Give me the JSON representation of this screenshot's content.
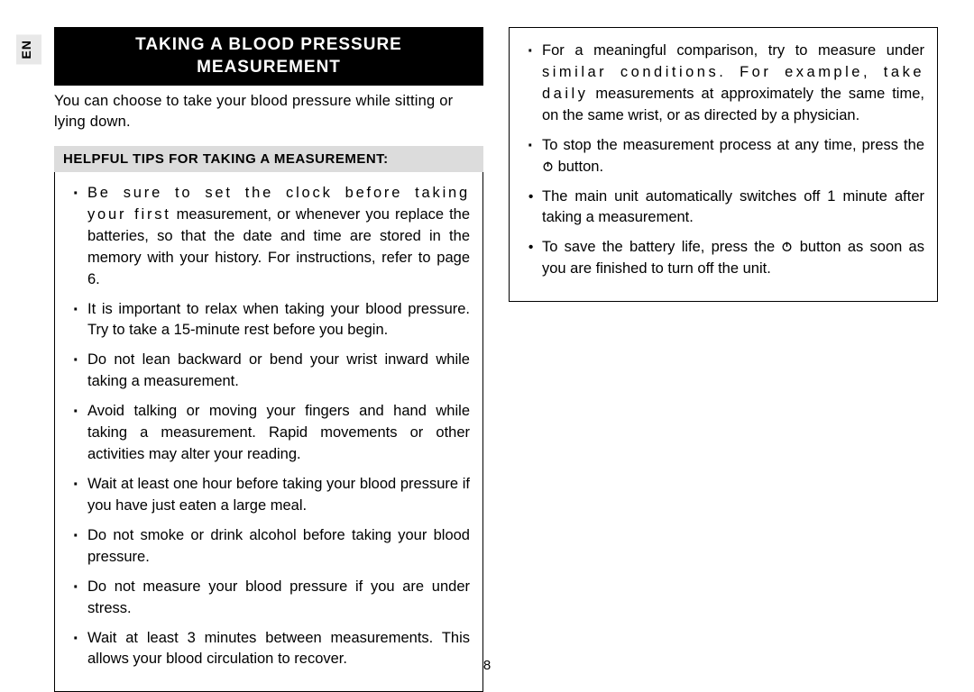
{
  "lang_tab": "EN",
  "section_title_line1": "TAKING A BLOOD PRESSURE",
  "section_title_line2": "MEASUREMENT",
  "intro": "You can choose to take your blood pressure while sitting or lying down.",
  "tips_heading": "HELPFUL TIPS FOR TAKING A MEASUREMENT:",
  "left_tips": [
    {
      "first": "Be sure to set the clock before taking your first",
      "rest": "measurement, or whenever you replace the batteries, so that the date and time are stored in the memory with your history. For instructions, refer to page 6.",
      "spaced": true
    },
    {
      "first": "",
      "rest": "It is important to relax when taking your blood pressure. Try to take a 15-minute rest before you begin."
    },
    {
      "first": "",
      "rest": "Do not lean backward or bend your wrist inward while taking a measurement."
    },
    {
      "first": "",
      "rest": "Avoid talking or moving your fingers and hand while taking a measurement. Rapid movements or other activities may alter your reading."
    },
    {
      "first": "",
      "rest": "Wait at least one hour before taking your blood pressure if you have just eaten a large meal."
    },
    {
      "first": "",
      "rest": "Do not smoke or drink alcohol before taking your blood pressure."
    },
    {
      "first": "",
      "rest": "Do not measure your blood pressure if you are under stress."
    },
    {
      "first": "",
      "rest": "Wait at least 3 minutes between measurements. This allows your blood circulation to recover."
    }
  ],
  "right_tips": [
    {
      "type": "dot",
      "first": "For a meaningful comparison, try to measure under",
      "second": "similar conditions. For example, take daily",
      "rest": "measurements at approximately the same time, on the same wrist, or as directed by a physician."
    },
    {
      "type": "dot",
      "text_before": "To stop the measurement process at any time, press the ",
      "text_after": " button.",
      "has_icon": true
    },
    {
      "type": "big",
      "rest": "The main unit automatically switches off 1 minute after taking a measurement."
    },
    {
      "type": "big",
      "text_before": "To save the battery life, press the ",
      "text_after": " button as soon as you are finished to turn off the unit.",
      "has_icon": true
    }
  ],
  "page_number": "8",
  "colors": {
    "page_bg": "#ffffff",
    "title_bg": "#000000",
    "title_fg": "#ffffff",
    "tips_heading_bg": "#dcdcdc",
    "lang_bg": "#e8e8e8",
    "border": "#000000"
  }
}
